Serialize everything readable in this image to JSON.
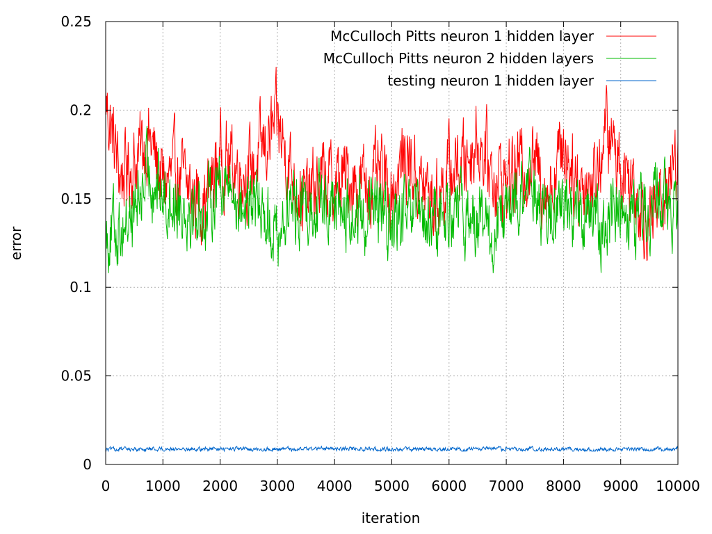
{
  "chart_data": {
    "type": "line",
    "title": "",
    "xlabel": "iteration",
    "ylabel": "error",
    "xlim": [
      0,
      10000
    ],
    "ylim": [
      0,
      0.25
    ],
    "xticks": [
      0,
      1000,
      2000,
      3000,
      4000,
      5000,
      6000,
      7000,
      8000,
      9000,
      10000
    ],
    "xtick_labels": [
      "0",
      "1000",
      "2000",
      "3000",
      "4000",
      "5000",
      "6000",
      "7000",
      "8000",
      "9000",
      "10000"
    ],
    "yticks": [
      0,
      0.05,
      0.1,
      0.15,
      0.2,
      0.25
    ],
    "ytick_labels": [
      "0",
      "0.05",
      "0.1",
      "0.15",
      "0.2",
      "0.25"
    ],
    "grid": true,
    "legend_position": "top-right",
    "series": [
      {
        "name": "McCulloch Pitts neuron 1 hidden layer",
        "color": "#ff0000",
        "x": [
          0,
          250,
          500,
          750,
          1000,
          1250,
          1500,
          1750,
          2000,
          2250,
          2500,
          2750,
          3000,
          3250,
          3500,
          3750,
          4000,
          4250,
          4500,
          4750,
          5000,
          5250,
          5500,
          5750,
          6000,
          6250,
          6500,
          6750,
          7000,
          7250,
          7500,
          7750,
          8000,
          8250,
          8500,
          8750,
          9000,
          9250,
          9500,
          9750,
          10000
        ],
        "values": [
          0.205,
          0.163,
          0.17,
          0.185,
          0.158,
          0.165,
          0.152,
          0.148,
          0.175,
          0.168,
          0.164,
          0.178,
          0.192,
          0.165,
          0.148,
          0.16,
          0.158,
          0.162,
          0.158,
          0.16,
          0.155,
          0.175,
          0.158,
          0.148,
          0.165,
          0.17,
          0.185,
          0.165,
          0.16,
          0.168,
          0.17,
          0.155,
          0.182,
          0.16,
          0.158,
          0.188,
          0.17,
          0.158,
          0.135,
          0.155,
          0.175
        ],
        "range": [
          0.115,
          0.225
        ]
      },
      {
        "name": "McCulloch Pitts neuron 2 hidden layers",
        "color": "#00bb00",
        "x": [
          0,
          250,
          500,
          750,
          1000,
          1250,
          1500,
          1750,
          2000,
          2250,
          2500,
          2750,
          3000,
          3250,
          3500,
          3750,
          4000,
          4250,
          4500,
          4750,
          5000,
          5250,
          5500,
          5750,
          6000,
          6250,
          6500,
          6750,
          7000,
          7250,
          7500,
          7750,
          8000,
          8250,
          8500,
          8750,
          9000,
          9250,
          9500,
          9750,
          10000
        ],
        "values": [
          0.13,
          0.135,
          0.142,
          0.165,
          0.152,
          0.148,
          0.145,
          0.14,
          0.165,
          0.15,
          0.145,
          0.145,
          0.13,
          0.148,
          0.145,
          0.15,
          0.148,
          0.138,
          0.14,
          0.142,
          0.135,
          0.14,
          0.135,
          0.135,
          0.145,
          0.138,
          0.14,
          0.125,
          0.14,
          0.15,
          0.155,
          0.135,
          0.15,
          0.14,
          0.138,
          0.135,
          0.15,
          0.14,
          0.148,
          0.15,
          0.14
        ],
        "range": [
          0.108,
          0.198
        ]
      },
      {
        "name": "testing neuron 1 hidden layer",
        "color": "#0066cc",
        "x": [
          0,
          1000,
          2000,
          3000,
          4000,
          5000,
          6000,
          7000,
          8000,
          9000,
          10000
        ],
        "values": [
          0.0085,
          0.0088,
          0.0086,
          0.0087,
          0.009,
          0.0086,
          0.0085,
          0.0088,
          0.0084,
          0.0083,
          0.009
        ],
        "range": [
          0.0075,
          0.011
        ]
      }
    ]
  }
}
